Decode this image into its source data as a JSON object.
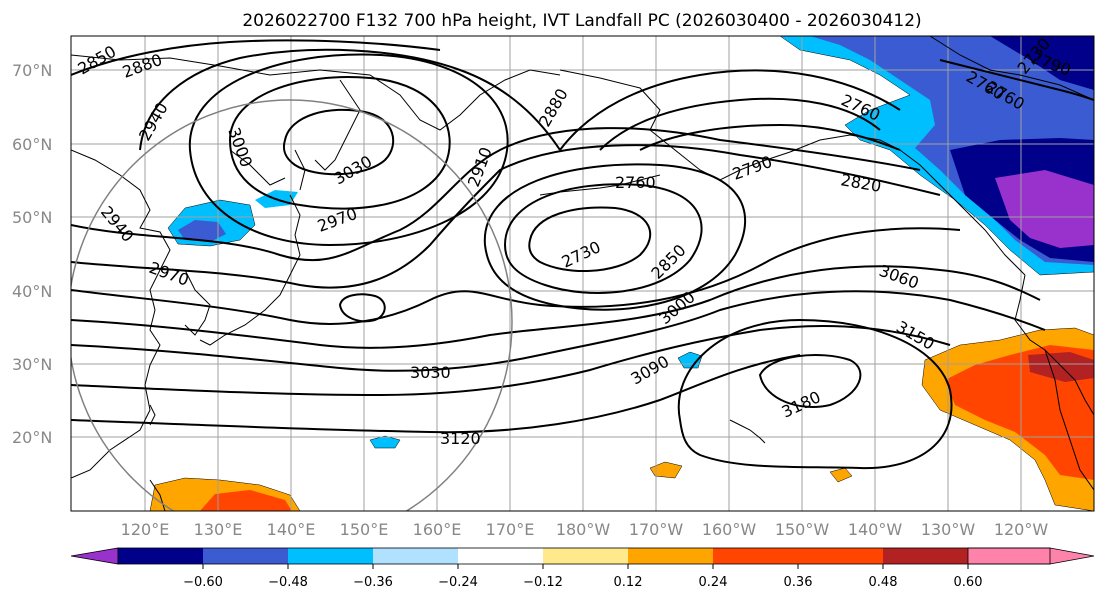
{
  "title": "2026022700 F132 700 hPa height, IVT Landfall PC (2026030400 - 2026030412)",
  "lat_labels": [
    "70°N",
    "60°N",
    "50°N",
    "40°N",
    "30°N",
    "20°N"
  ],
  "lon_labels": [
    "120°E",
    "130°E",
    "140°E",
    "150°E",
    "160°E",
    "170°E",
    "180°W",
    "170°W",
    "160°W",
    "150°W",
    "140°W",
    "130°W",
    "120°W"
  ],
  "colorbar": {
    "colors": [
      "#9932cc",
      "#00008b",
      "#3a5bd1",
      "#00bfff",
      "#b0e2ff",
      "#ffffff",
      "#ffe98a",
      "#ffa500",
      "#ff4500",
      "#b22222",
      "#ff82ab"
    ],
    "tick_labels": [
      "−0.60",
      "−0.48",
      "−0.36",
      "−0.24",
      "−0.12",
      "0.12",
      "0.24",
      "0.36",
      "0.48",
      "0.60"
    ]
  },
  "contour_labels": [
    "2850",
    "2880",
    "2940",
    "3000",
    "3030",
    "2910",
    "2880",
    "2760",
    "2760",
    "2790",
    "2730",
    "2760",
    "2820",
    "2850",
    "3000",
    "3060",
    "3150",
    "3090",
    "3180",
    "3030",
    "3120",
    "2970",
    "2970",
    "2940",
    "2760",
    "2730",
    "2790"
  ]
}
